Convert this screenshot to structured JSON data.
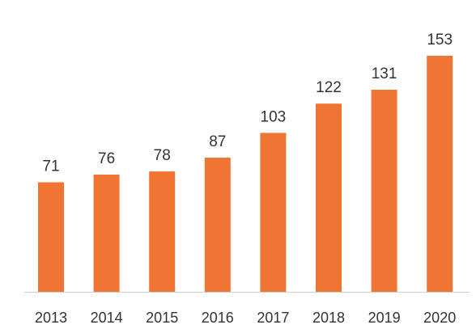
{
  "chart_data": {
    "type": "bar",
    "categories": [
      "2013",
      "2014",
      "2015",
      "2016",
      "2017",
      "2018",
      "2019",
      "2020"
    ],
    "values": [
      71,
      76,
      78,
      87,
      103,
      122,
      131,
      153
    ],
    "title": "",
    "xlabel": "",
    "ylabel": "",
    "ylim": [
      0,
      155
    ],
    "grid": false,
    "legend": "none",
    "data_labels": true,
    "bar_color": "#F07535",
    "axis_color": "#D0D0D0",
    "text_color": "#333333"
  }
}
